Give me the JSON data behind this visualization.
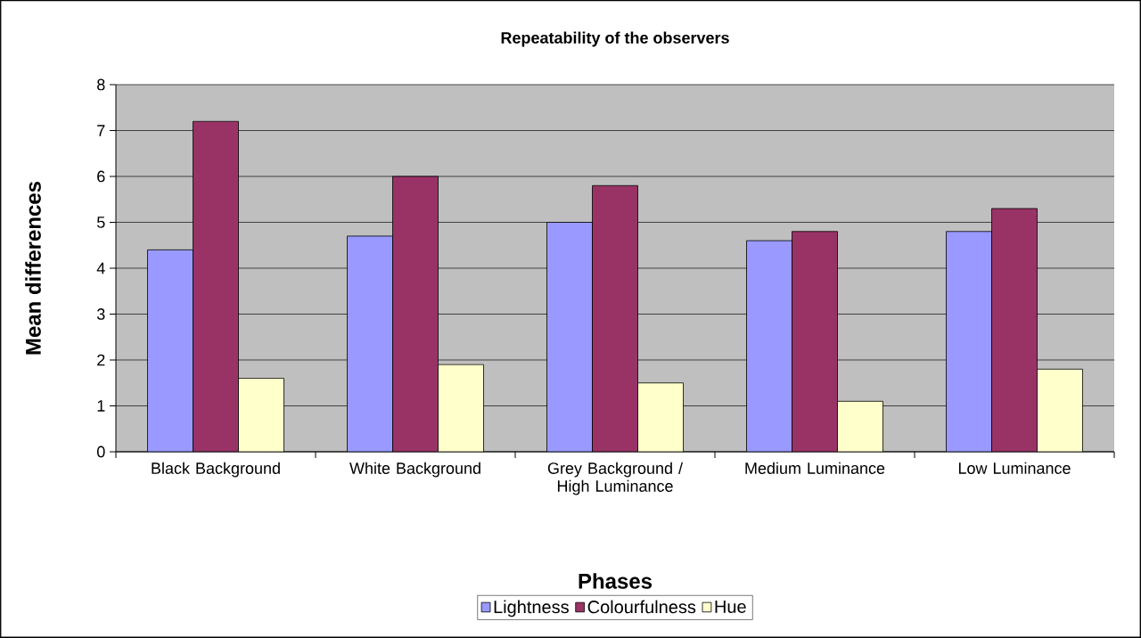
{
  "chart_data": {
    "type": "bar",
    "title": "Repeatability of the observers",
    "xlabel": "Phases",
    "ylabel": "Mean differences",
    "categories": [
      "Black Background",
      "White Background",
      "Grey Background / High Luminance",
      "Medium Luminance",
      "Low Luminance"
    ],
    "series": [
      {
        "name": "Lightness",
        "color": "#9999ff",
        "values": [
          4.4,
          4.7,
          5.0,
          4.6,
          4.8
        ]
      },
      {
        "name": "Colourfulness",
        "color": "#993366",
        "values": [
          7.2,
          6.0,
          5.8,
          4.8,
          5.3
        ]
      },
      {
        "name": "Hue",
        "color": "#ffffcc",
        "values": [
          1.6,
          1.9,
          1.5,
          1.1,
          1.8
        ]
      }
    ],
    "ylim": [
      0,
      8
    ],
    "yticks": [
      0,
      1,
      2,
      3,
      4,
      5,
      6,
      7,
      8
    ],
    "grid": "y",
    "legend": "bottom"
  }
}
